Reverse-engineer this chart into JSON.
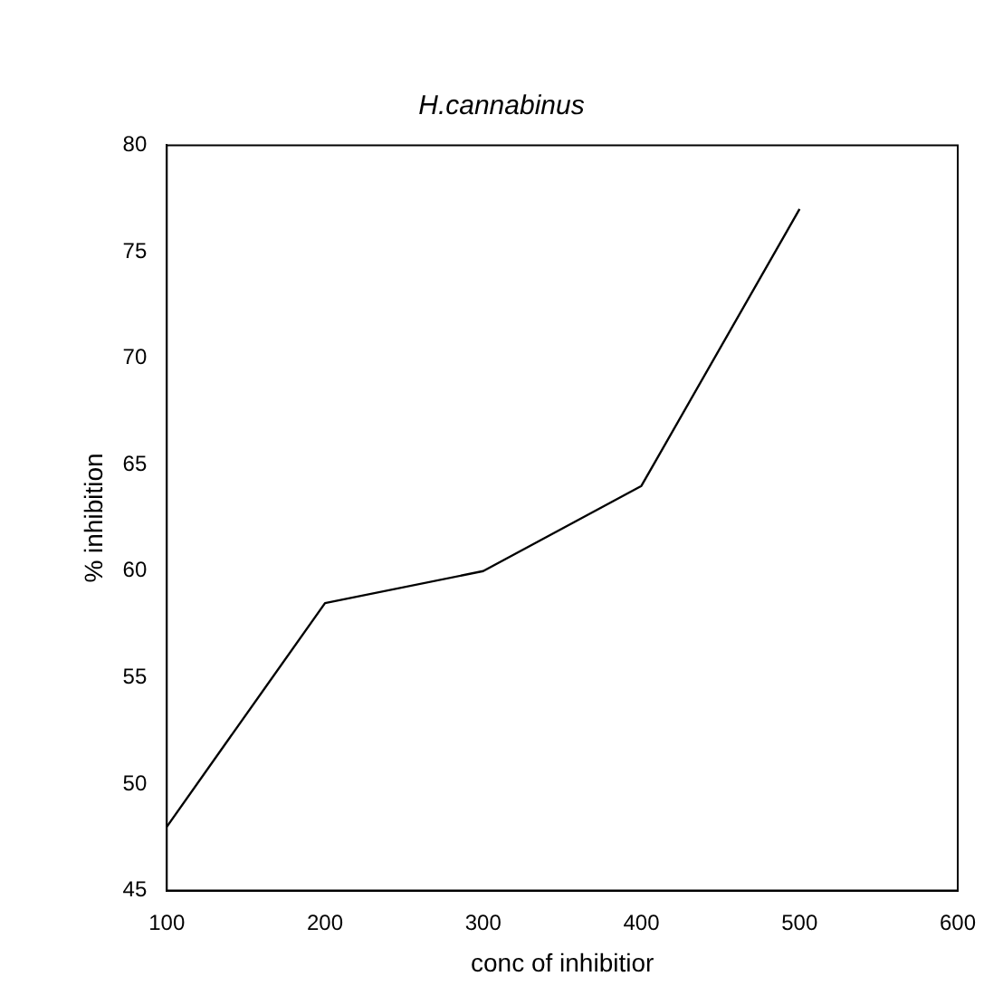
{
  "chart_data": {
    "type": "line",
    "title": "H.cannabinus",
    "xlabel": "conc of inhibitior",
    "ylabel": "% inhibition",
    "x": [
      100,
      200,
      300,
      400,
      500
    ],
    "series": [
      {
        "color": "#000000",
        "values": [
          48,
          58.5,
          60,
          64,
          77
        ]
      }
    ],
    "xlim": [
      100,
      600
    ],
    "xticks": [
      100,
      200,
      300,
      400,
      500,
      600
    ],
    "ylim": [
      45,
      80
    ],
    "yticks": [
      45,
      50,
      55,
      60,
      65,
      70,
      75,
      80
    ],
    "grid": false,
    "legend": false,
    "marker": "none",
    "line_style": "solid"
  }
}
